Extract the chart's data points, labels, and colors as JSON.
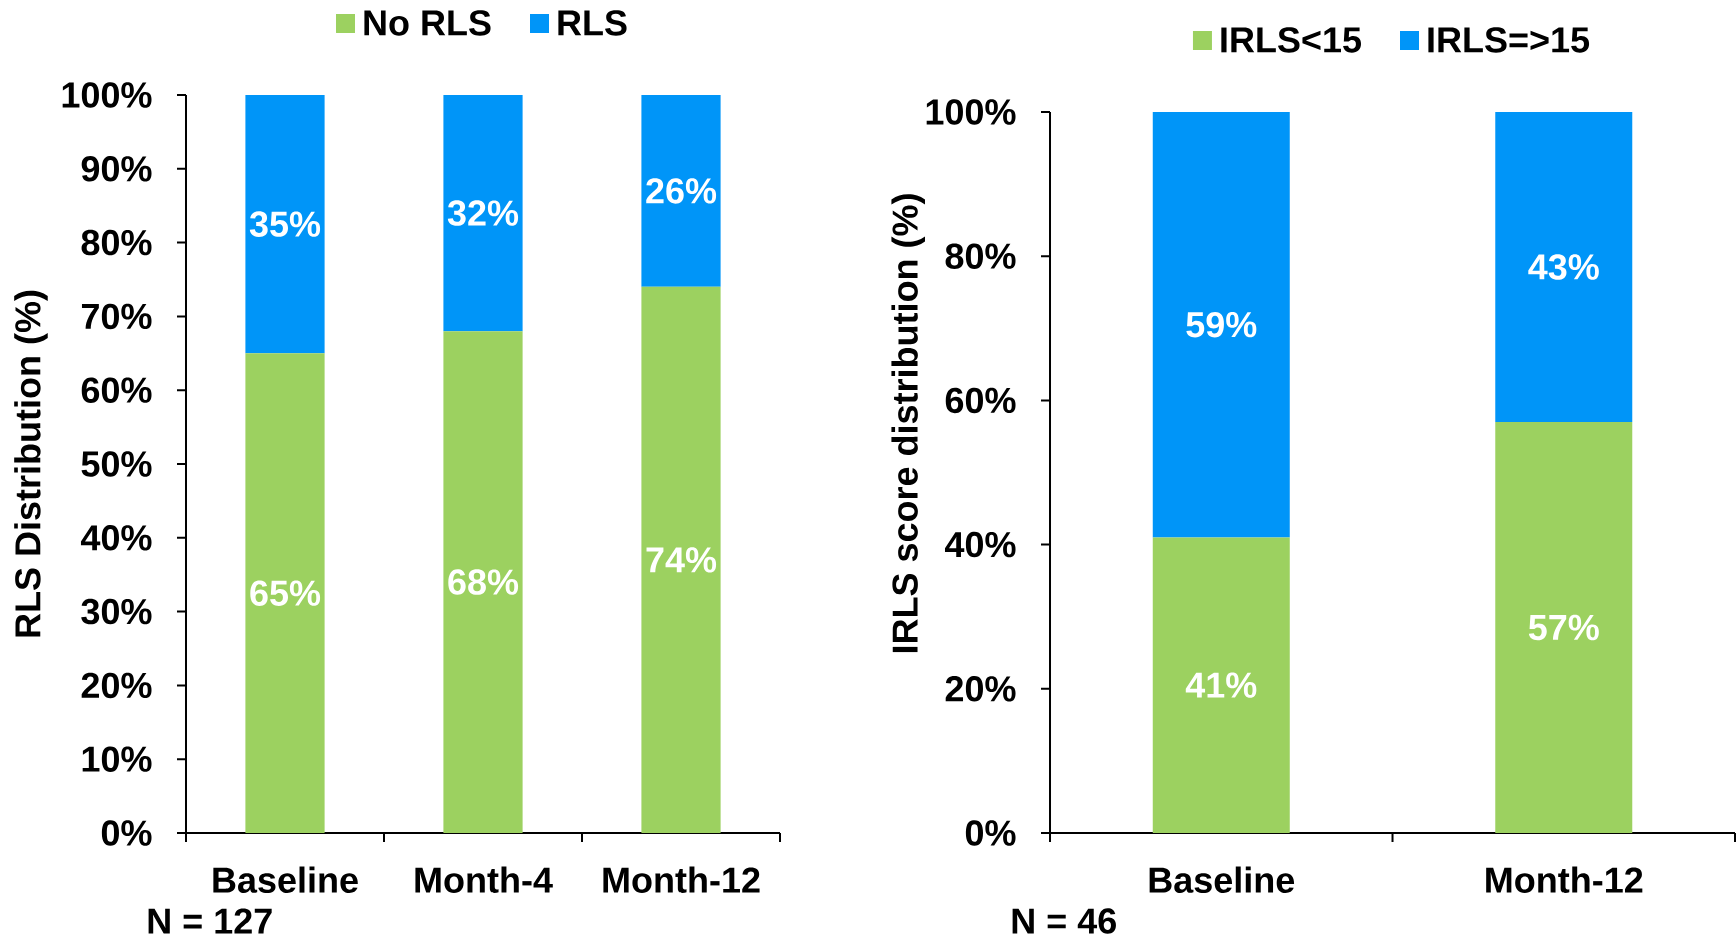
{
  "chart_data": [
    {
      "type": "bar",
      "stacked": true,
      "categories": [
        "Baseline",
        "Month-4",
        "Month-12"
      ],
      "series": [
        {
          "name": "No RLS",
          "color": "#9CD160",
          "values": [
            65,
            68,
            74
          ],
          "value_labels": [
            "65%",
            "68%",
            "74%"
          ]
        },
        {
          "name": "RLS",
          "color": "#0095F8",
          "values": [
            35,
            32,
            26
          ],
          "value_labels": [
            "35%",
            "32%",
            "26%"
          ]
        }
      ],
      "ylabel": "RLS Distribution (%)",
      "ylim": [
        0,
        100
      ],
      "yticks": [
        {
          "value": 0,
          "label": "0%"
        },
        {
          "value": 10,
          "label": "10%"
        },
        {
          "value": 20,
          "label": "20%"
        },
        {
          "value": 30,
          "label": "30%"
        },
        {
          "value": 40,
          "label": "40%"
        },
        {
          "value": 50,
          "label": "50%"
        },
        {
          "value": 60,
          "label": "60%"
        },
        {
          "value": 70,
          "label": "70%"
        },
        {
          "value": 80,
          "label": "80%"
        },
        {
          "value": 90,
          "label": "90%"
        },
        {
          "value": 100,
          "label": "100%"
        }
      ],
      "legend": "top",
      "annotations": [
        "N = 127"
      ]
    },
    {
      "type": "bar",
      "stacked": true,
      "categories": [
        "Baseline",
        "Month-12"
      ],
      "series": [
        {
          "name": "IRLS<15",
          "color": "#9CD160",
          "values": [
            41,
            57
          ],
          "value_labels": [
            "41%",
            "57%"
          ]
        },
        {
          "name": "IRLS=>15",
          "color": "#0095F8",
          "values": [
            59,
            43
          ],
          "value_labels": [
            "59%",
            "43%"
          ]
        }
      ],
      "ylabel": "IRLS score distribution (%)",
      "ylim": [
        0,
        100
      ],
      "yticks": [
        {
          "value": 0,
          "label": "0%"
        },
        {
          "value": 20,
          "label": "20%"
        },
        {
          "value": 40,
          "label": "40%"
        },
        {
          "value": 60,
          "label": "60%"
        },
        {
          "value": 80,
          "label": "80%"
        },
        {
          "value": 100,
          "label": "100%"
        }
      ],
      "legend": "top",
      "annotations": [
        "N = 46"
      ]
    }
  ]
}
